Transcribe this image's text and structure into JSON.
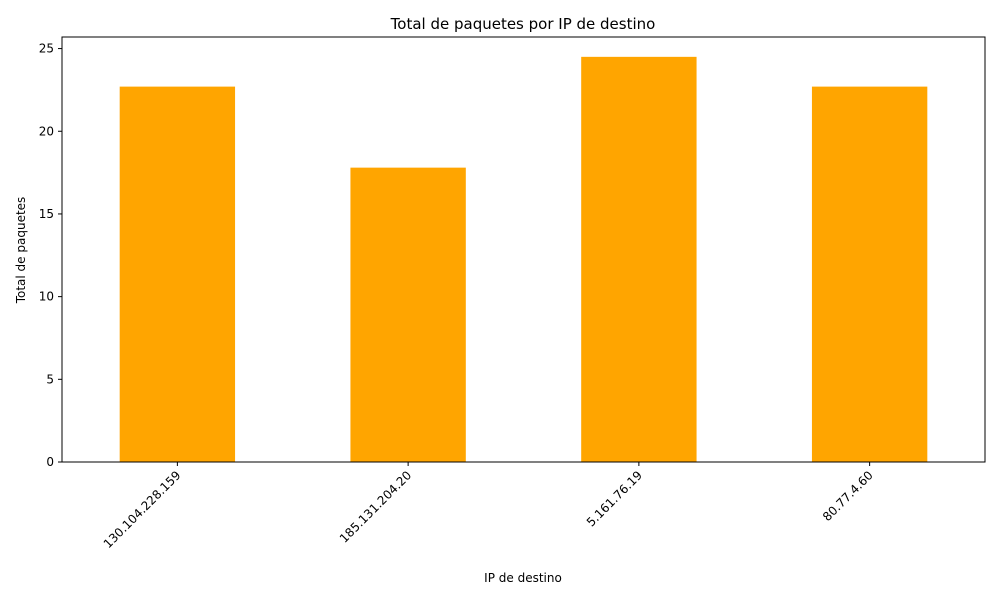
{
  "chart_data": {
    "type": "bar",
    "title": "Total de paquetes por IP de destino",
    "xlabel": "IP de destino",
    "ylabel": "Total de paquetes",
    "categories": [
      "130.104.228.159",
      "185.131.204.20",
      "5.161.76.19",
      "80.77.4.60"
    ],
    "values": [
      22.7,
      17.8,
      24.5,
      22.7
    ],
    "ylim": [
      0,
      25.7
    ],
    "yticks": [
      0,
      5,
      10,
      15,
      20,
      25
    ],
    "bar_color": "#ffa500",
    "grid": false,
    "legend": "none"
  }
}
